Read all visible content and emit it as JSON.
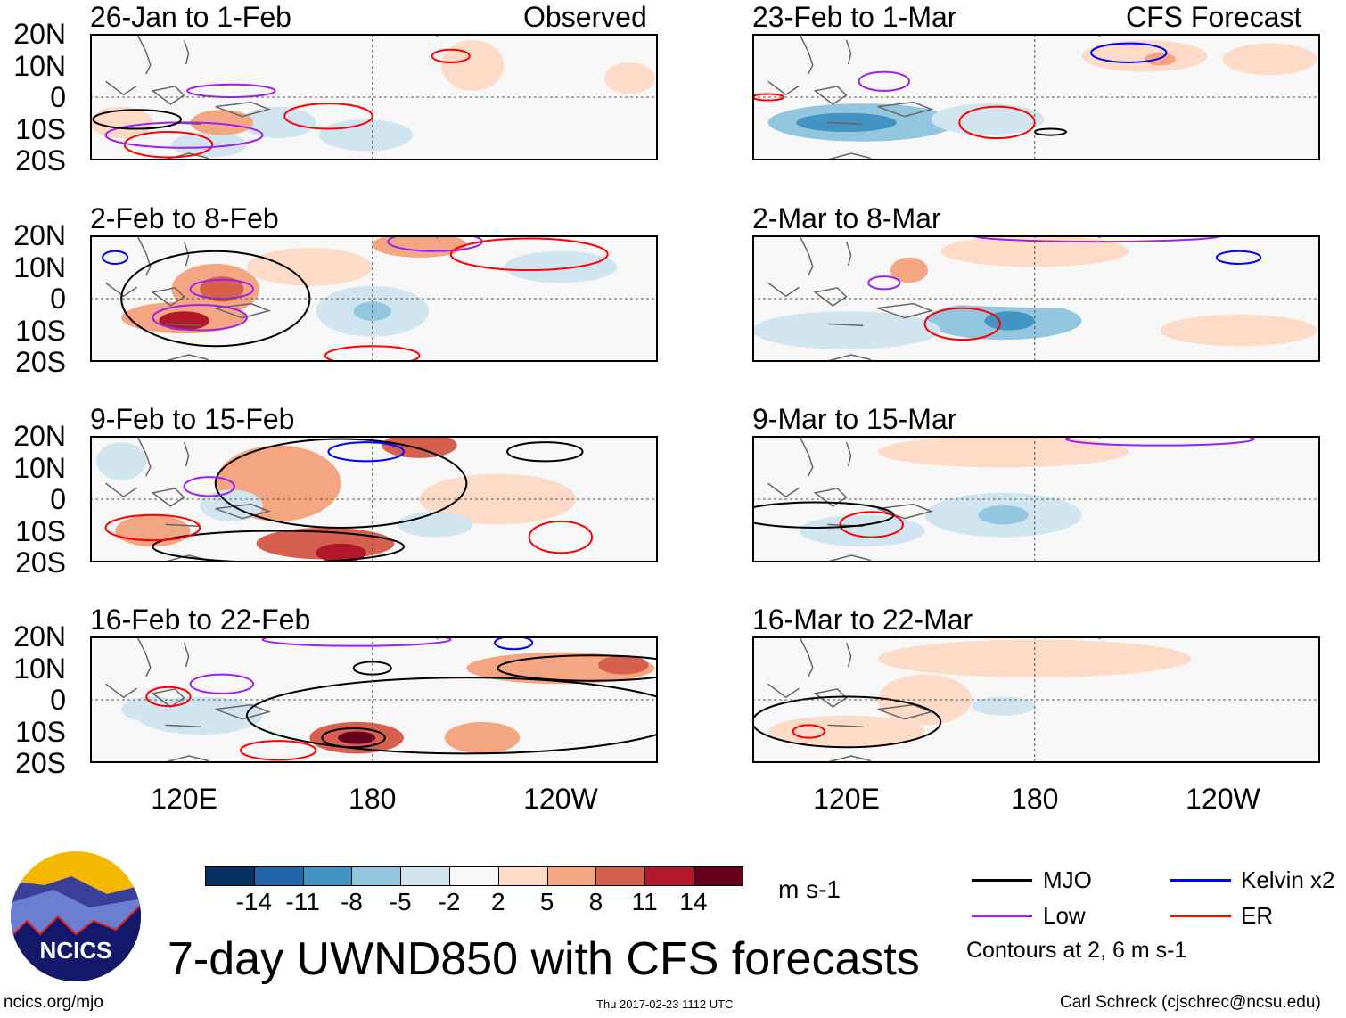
{
  "labels": {
    "left_header": "Observed",
    "right_header": "CFS Forecast",
    "title": "7-day UWND850 with CFS forecasts",
    "units": "m s-1",
    "contours_note": "Contours at 2, 6 m s-1",
    "site": "ncics.org/mjo",
    "timestamp": "Thu 2017-02-23 1112 UTC",
    "author": "Carl Schreck (cjschrec@ncsu.edu)",
    "logo_text": "NCICS"
  },
  "lat_labels": [
    "20N",
    "10N",
    "0",
    "10S",
    "20S"
  ],
  "lon_labels": [
    "120E",
    "180",
    "120W"
  ],
  "colors": {
    "bins": [
      "#053061",
      "#2166ac",
      "#4393c3",
      "#92c5de",
      "#d1e5f0",
      "#f7f7f7",
      "#fddbc7",
      "#f4a582",
      "#d6604d",
      "#b2182b",
      "#67001f"
    ],
    "MJO": "#000000",
    "Low": "#a020f0",
    "Kelvin": "#0000ff",
    "ER": "#ff0000"
  },
  "colorbar_ticks": [
    "-14",
    "-11",
    "-8",
    "-5",
    "-2",
    "2",
    "5",
    "8",
    "11",
    "14"
  ],
  "legend": [
    {
      "name": "MJO",
      "label": "MJO"
    },
    {
      "name": "Low",
      "label": "Low"
    },
    {
      "name": "Kelvin",
      "label": "Kelvin x2"
    },
    {
      "name": "ER",
      "label": "ER"
    }
  ],
  "chart_data": {
    "type": "heatmap",
    "variable": "850-hPa zonal wind anomaly",
    "units": "m s-1",
    "lon_range": [
      90,
      271
    ],
    "lat_range": [
      -20,
      20
    ],
    "panels": [
      {
        "title": "26-Jan to 1-Feb",
        "fills": [
          [
            150,
            -8,
            12,
            5,
            -4
          ],
          [
            178,
            -12,
            15,
            5,
            -4
          ],
          [
            128,
            -15,
            12,
            4,
            -4
          ],
          [
            100,
            -8,
            10,
            5,
            4
          ],
          [
            132,
            -8,
            10,
            4,
            6
          ],
          [
            212,
            10,
            10,
            8,
            4
          ],
          [
            262,
            6,
            8,
            5,
            2
          ],
          [
            230,
            -3,
            20,
            4,
            -2
          ]
        ],
        "contours": [
          [
            "ER",
            166,
            -6,
            14,
            4
          ],
          [
            "ER",
            205,
            13,
            6,
            2
          ],
          [
            "ER",
            115,
            -15,
            14,
            4
          ],
          [
            "Low",
            135,
            2,
            14,
            2
          ],
          [
            "Low",
            120,
            -12,
            25,
            4
          ],
          [
            "MJO",
            105,
            -7,
            14,
            3
          ]
        ]
      },
      {
        "title": "2-Feb to 8-Feb",
        "fills": [
          [
            130,
            3,
            14,
            8,
            6
          ],
          [
            132,
            3,
            7,
            4,
            10
          ],
          [
            120,
            -6,
            20,
            5,
            7
          ],
          [
            120,
            -7,
            8,
            3,
            12
          ],
          [
            195,
            17,
            15,
            4,
            7
          ],
          [
            180,
            -4,
            18,
            8,
            -4
          ],
          [
            180,
            -4,
            6,
            3,
            -8
          ],
          [
            240,
            10,
            18,
            5,
            -3
          ],
          [
            225,
            -10,
            20,
            4,
            -2
          ],
          [
            160,
            10,
            20,
            6,
            3
          ]
        ],
        "contours": [
          [
            "MJO",
            130,
            0,
            30,
            15
          ],
          [
            "Low",
            132,
            3,
            10,
            3
          ],
          [
            "Low",
            125,
            -6,
            15,
            4
          ],
          [
            "Low",
            200,
            18,
            15,
            3
          ],
          [
            "ER",
            230,
            14,
            25,
            5
          ],
          [
            "ER",
            180,
            -18,
            15,
            3
          ],
          [
            "Kelvin",
            98,
            13,
            4,
            2
          ]
        ]
      },
      {
        "title": "9-Feb to 15-Feb",
        "fills": [
          [
            150,
            5,
            20,
            12,
            5
          ],
          [
            195,
            17,
            12,
            4,
            10
          ],
          [
            165,
            -14,
            22,
            5,
            8
          ],
          [
            170,
            -17,
            8,
            3,
            12
          ],
          [
            110,
            -10,
            12,
            5,
            6
          ],
          [
            100,
            12,
            8,
            6,
            -3
          ],
          [
            135,
            -2,
            10,
            5,
            -3
          ],
          [
            220,
            0,
            25,
            8,
            2
          ],
          [
            200,
            -8,
            12,
            4,
            -3
          ]
        ],
        "contours": [
          [
            "MJO",
            170,
            5,
            40,
            14
          ],
          [
            "MJO",
            150,
            -15,
            40,
            5
          ],
          [
            "MJO",
            235,
            15,
            12,
            3
          ],
          [
            "ER",
            240,
            -12,
            10,
            5
          ],
          [
            "ER",
            110,
            -9,
            15,
            4
          ],
          [
            "Kelvin",
            178,
            15,
            12,
            3
          ],
          [
            "Low",
            128,
            4,
            8,
            3
          ]
        ]
      },
      {
        "title": "16-Feb to 22-Feb",
        "fills": [
          [
            175,
            -12,
            15,
            5,
            8
          ],
          [
            175,
            -12,
            6,
            2,
            14
          ],
          [
            215,
            -12,
            12,
            5,
            6
          ],
          [
            240,
            10,
            30,
            5,
            5
          ],
          [
            260,
            11,
            8,
            3,
            8
          ],
          [
            125,
            -5,
            20,
            6,
            -3
          ],
          [
            180,
            5,
            30,
            7,
            -2
          ],
          [
            110,
            -3,
            10,
            4,
            -4
          ]
        ],
        "contours": [
          [
            "MJO",
            210,
            -5,
            70,
            12
          ],
          [
            "MJO",
            174,
            -12,
            10,
            3
          ],
          [
            "MJO",
            250,
            10,
            30,
            4
          ],
          [
            "MJO",
            180,
            10,
            6,
            2
          ],
          [
            "ER",
            115,
            1,
            7,
            3
          ],
          [
            "ER",
            150,
            -16,
            12,
            3
          ],
          [
            "Low",
            132,
            5,
            10,
            3
          ],
          [
            "Low",
            175,
            19,
            30,
            2
          ],
          [
            "Kelvin",
            225,
            18,
            6,
            2
          ]
        ]
      },
      {
        "title": "23-Feb to 1-Mar",
        "fills": [
          [
            125,
            -8,
            30,
            6,
            -6
          ],
          [
            120,
            -8,
            16,
            3,
            -9
          ],
          [
            165,
            -7,
            18,
            5,
            -4
          ],
          [
            215,
            13,
            20,
            5,
            3
          ],
          [
            220,
            12,
            5,
            2,
            6
          ],
          [
            255,
            12,
            15,
            5,
            3
          ],
          [
            200,
            -15,
            40,
            5,
            -2
          ]
        ],
        "contours": [
          [
            "ER",
            168,
            -8,
            12,
            5
          ],
          [
            "Kelvin",
            210,
            14,
            12,
            3
          ],
          [
            "Low",
            132,
            5,
            8,
            3
          ],
          [
            "MJO",
            185,
            -11,
            5,
            1
          ],
          [
            "ER",
            95,
            0,
            5,
            1
          ]
        ]
      },
      {
        "title": "2-Mar to 8-Mar",
        "fills": [
          [
            170,
            -7,
            25,
            6,
            -6
          ],
          [
            172,
            -7,
            8,
            3,
            -9
          ],
          [
            120,
            -10,
            30,
            6,
            -4
          ],
          [
            140,
            9,
            6,
            4,
            5
          ],
          [
            180,
            15,
            30,
            5,
            2
          ],
          [
            245,
            -10,
            25,
            5,
            2
          ],
          [
            200,
            0,
            60,
            3,
            -2
          ]
        ],
        "contours": [
          [
            "ER",
            157,
            -8,
            12,
            5
          ],
          [
            "Kelvin",
            245,
            13,
            7,
            2
          ],
          [
            "Low",
            132,
            5,
            5,
            2
          ],
          [
            "Low",
            200,
            20,
            40,
            2
          ]
        ]
      },
      {
        "title": "9-Mar to 15-Mar",
        "fills": [
          [
            170,
            -5,
            25,
            7,
            -5
          ],
          [
            170,
            -5,
            8,
            3,
            -7
          ],
          [
            125,
            -10,
            20,
            5,
            -3
          ],
          [
            170,
            15,
            40,
            5,
            3
          ],
          [
            230,
            -12,
            40,
            4,
            -2
          ]
        ],
        "contours": [
          [
            "ER",
            128,
            -8,
            10,
            4
          ],
          [
            "MJO",
            110,
            -5,
            25,
            4
          ],
          [
            "Low",
            220,
            19,
            30,
            2
          ]
        ]
      },
      {
        "title": "16-Mar to 22-Mar",
        "fills": [
          [
            180,
            13,
            50,
            6,
            3
          ],
          [
            145,
            0,
            15,
            8,
            3
          ],
          [
            170,
            -2,
            10,
            3,
            -3
          ],
          [
            120,
            -10,
            25,
            5,
            4
          ]
        ],
        "contours": [
          [
            "MJO",
            120,
            -7,
            30,
            8
          ],
          [
            "ER",
            108,
            -10,
            5,
            2
          ]
        ]
      }
    ]
  }
}
